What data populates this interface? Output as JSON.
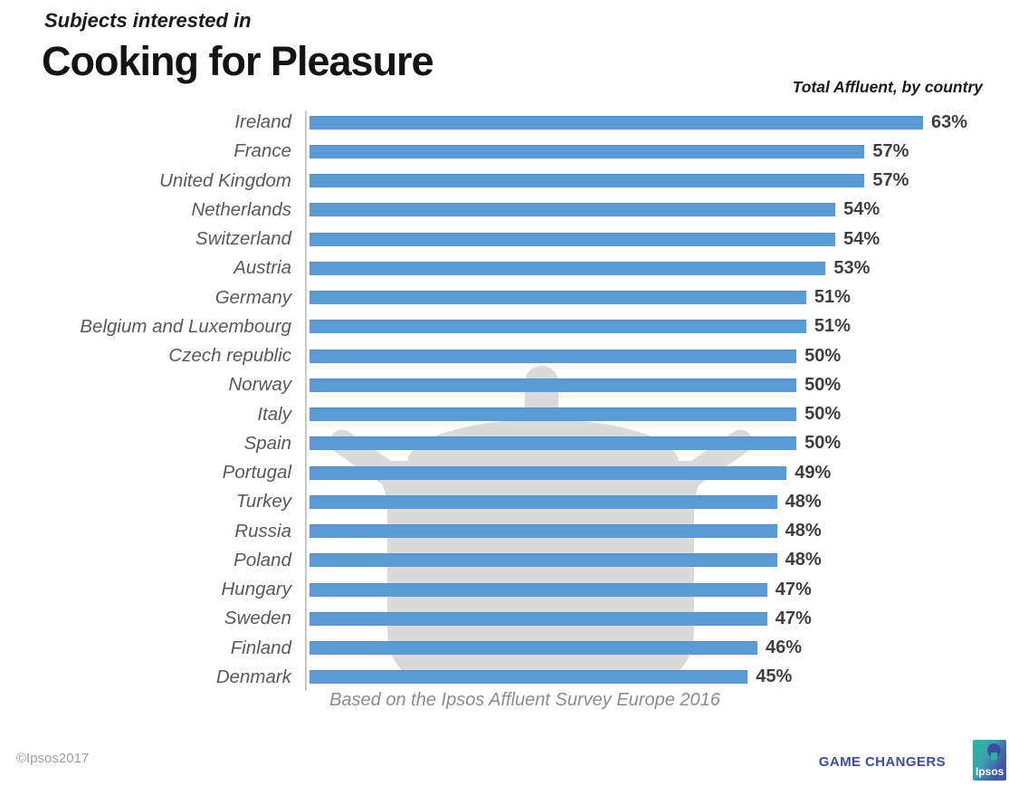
{
  "header": {
    "subtitle": "Subjects interested in",
    "title": "Cooking for Pleasure",
    "right_note": "Total Affluent, by country"
  },
  "chart_data": {
    "type": "bar",
    "orientation": "horizontal",
    "title": "Cooking for Pleasure",
    "subtitle": "Subjects interested in",
    "note": "Total Affluent, by country",
    "caption": "Based on the Ipsos Affluent Survey Europe 2016",
    "categories": [
      "Ireland",
      "France",
      "United Kingdom",
      "Netherlands",
      "Switzerland",
      "Austria",
      "Germany",
      "Belgium and Luxembourg",
      "Czech republic",
      "Norway",
      "Italy",
      "Spain",
      "Portugal",
      "Turkey",
      "Russia",
      "Poland",
      "Hungary",
      "Sweden",
      "Finland",
      "Denmark"
    ],
    "values": [
      63,
      57,
      57,
      54,
      54,
      53,
      51,
      51,
      50,
      50,
      50,
      50,
      49,
      48,
      48,
      48,
      47,
      47,
      46,
      45
    ],
    "value_suffix": "%",
    "xlim": [
      0,
      65
    ],
    "grid": false,
    "legend": false,
    "bar_color": "#5B9BD5",
    "label_color": "#595959",
    "value_color": "#3f3f3f",
    "watermark": "cooking-pot",
    "watermark_color": "#dadada"
  },
  "footer": {
    "copyright": "©Ipsos2017",
    "tagline": "GAME CHANGERS",
    "logo_text": "Ipsos"
  }
}
